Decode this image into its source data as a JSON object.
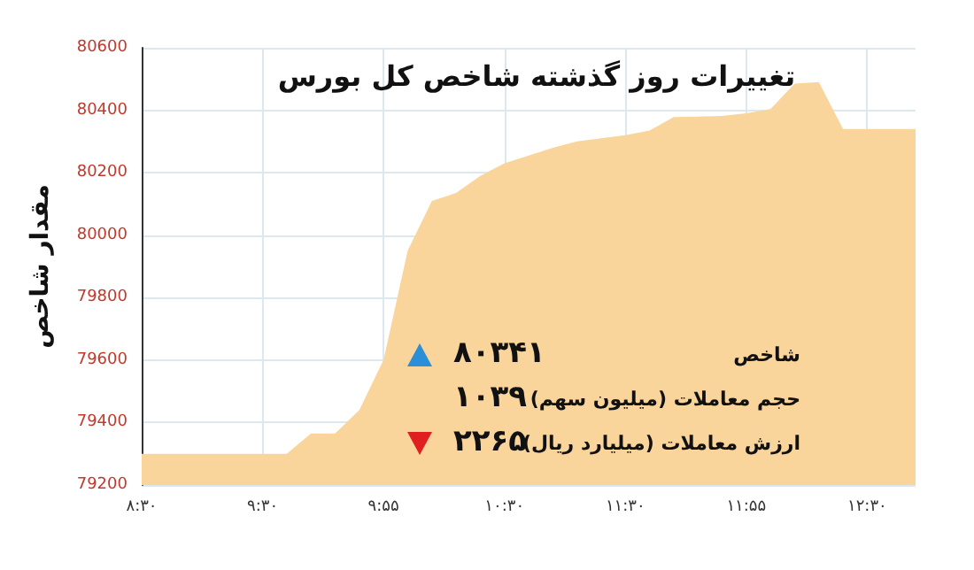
{
  "chart_data": {
    "type": "area",
    "title": "تغییرات روز گذشته شاخص کل بورس",
    "ylabel": "مقدار شاخص",
    "categories": [
      "۸:۳۰",
      null,
      null,
      null,
      null,
      "۹:۳۰",
      null,
      null,
      null,
      null,
      "۹:۵۵",
      null,
      null,
      null,
      null,
      "۱۰:۳۰",
      null,
      null,
      null,
      null,
      "۱۱:۳۰",
      null,
      null,
      null,
      null,
      "۱۱:۵۵",
      null,
      null,
      null,
      null,
      "۱۲:۳۰",
      null,
      null
    ],
    "values": [
      79300,
      79300,
      79300,
      79300,
      79300,
      79300,
      79300,
      79365,
      79365,
      79440,
      79600,
      79950,
      80110,
      80135,
      80190,
      80230,
      80255,
      80280,
      80300,
      80310,
      80320,
      80335,
      80378,
      80380,
      80382,
      80390,
      80404,
      80485,
      80490,
      80340,
      80340,
      80340,
      80340
    ],
    "color": "#f9d59b",
    "ylim": [
      79200,
      80600
    ],
    "yticks": [
      79200,
      79400,
      79600,
      79800,
      80000,
      80200,
      80400,
      80600
    ],
    "grid": true,
    "annotations": [
      "شاخص",
      "۸۰۳۴۱",
      "حجم معاملات (میلیون سهم)",
      "۱۰۳۹",
      "ارزش معاملات (میلیارد ریال)",
      "۲۲۶۵"
    ]
  }
}
